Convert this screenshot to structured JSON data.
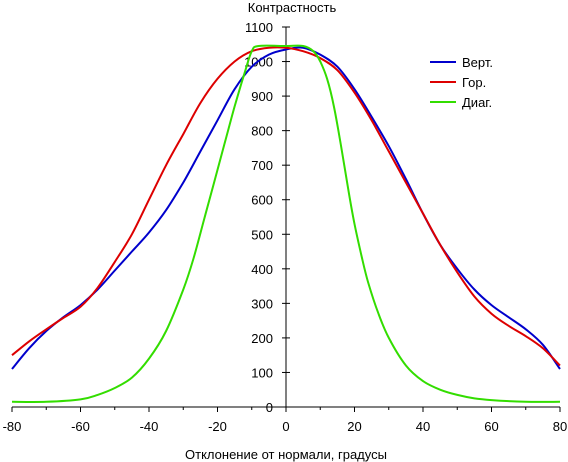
{
  "chart_data": {
    "type": "line",
    "ylabel": "Контрастность",
    "xlabel": "Отклонение от нормали, градусы",
    "xlim": [
      -80,
      80
    ],
    "ylim": [
      0,
      1100
    ],
    "xticks": [
      -80,
      -60,
      -40,
      -20,
      0,
      20,
      40,
      60,
      80
    ],
    "yticks": [
      0,
      100,
      200,
      300,
      400,
      500,
      600,
      700,
      800,
      900,
      1000,
      1100
    ],
    "grid": false,
    "legend_position": "top-right",
    "series": [
      {
        "name": "Верт.",
        "color": "#0000cc",
        "points": [
          [
            -80,
            110
          ],
          [
            -75,
            170
          ],
          [
            -70,
            220
          ],
          [
            -65,
            260
          ],
          [
            -60,
            295
          ],
          [
            -55,
            340
          ],
          [
            -50,
            395
          ],
          [
            -45,
            450
          ],
          [
            -40,
            505
          ],
          [
            -35,
            570
          ],
          [
            -30,
            650
          ],
          [
            -25,
            740
          ],
          [
            -20,
            830
          ],
          [
            -15,
            920
          ],
          [
            -10,
            985
          ],
          [
            -5,
            1020
          ],
          [
            0,
            1035
          ],
          [
            5,
            1040
          ],
          [
            10,
            1020
          ],
          [
            15,
            985
          ],
          [
            20,
            920
          ],
          [
            25,
            840
          ],
          [
            30,
            755
          ],
          [
            35,
            660
          ],
          [
            40,
            560
          ],
          [
            45,
            470
          ],
          [
            50,
            400
          ],
          [
            55,
            340
          ],
          [
            60,
            295
          ],
          [
            65,
            260
          ],
          [
            70,
            225
          ],
          [
            75,
            180
          ],
          [
            80,
            110
          ]
        ]
      },
      {
        "name": "Гор.",
        "color": "#dd0000",
        "points": [
          [
            -80,
            150
          ],
          [
            -75,
            190
          ],
          [
            -70,
            225
          ],
          [
            -65,
            258
          ],
          [
            -60,
            290
          ],
          [
            -55,
            345
          ],
          [
            -50,
            420
          ],
          [
            -45,
            500
          ],
          [
            -40,
            600
          ],
          [
            -35,
            700
          ],
          [
            -30,
            790
          ],
          [
            -25,
            880
          ],
          [
            -20,
            950
          ],
          [
            -15,
            1000
          ],
          [
            -10,
            1030
          ],
          [
            -5,
            1040
          ],
          [
            0,
            1040
          ],
          [
            5,
            1030
          ],
          [
            10,
            1010
          ],
          [
            15,
            975
          ],
          [
            20,
            910
          ],
          [
            25,
            830
          ],
          [
            30,
            740
          ],
          [
            35,
            650
          ],
          [
            40,
            560
          ],
          [
            45,
            470
          ],
          [
            50,
            390
          ],
          [
            55,
            320
          ],
          [
            60,
            270
          ],
          [
            65,
            235
          ],
          [
            70,
            205
          ],
          [
            75,
            170
          ],
          [
            80,
            120
          ]
        ]
      },
      {
        "name": "Диаг.",
        "color": "#33dd00",
        "points": [
          [
            -80,
            15
          ],
          [
            -70,
            15
          ],
          [
            -60,
            22
          ],
          [
            -55,
            35
          ],
          [
            -50,
            55
          ],
          [
            -45,
            85
          ],
          [
            -40,
            140
          ],
          [
            -35,
            220
          ],
          [
            -30,
            340
          ],
          [
            -27,
            430
          ],
          [
            -24,
            540
          ],
          [
            -21,
            650
          ],
          [
            -18,
            760
          ],
          [
            -15,
            870
          ],
          [
            -12,
            970
          ],
          [
            -10,
            1030
          ],
          [
            -8,
            1045
          ],
          [
            0,
            1045
          ],
          [
            5,
            1045
          ],
          [
            8,
            1030
          ],
          [
            10,
            1000
          ],
          [
            12,
            950
          ],
          [
            14,
            870
          ],
          [
            16,
            760
          ],
          [
            18,
            640
          ],
          [
            20,
            530
          ],
          [
            22,
            440
          ],
          [
            24,
            360
          ],
          [
            27,
            270
          ],
          [
            30,
            200
          ],
          [
            35,
            120
          ],
          [
            40,
            75
          ],
          [
            45,
            50
          ],
          [
            50,
            35
          ],
          [
            55,
            25
          ],
          [
            60,
            20
          ],
          [
            70,
            15
          ],
          [
            80,
            15
          ]
        ]
      }
    ]
  }
}
